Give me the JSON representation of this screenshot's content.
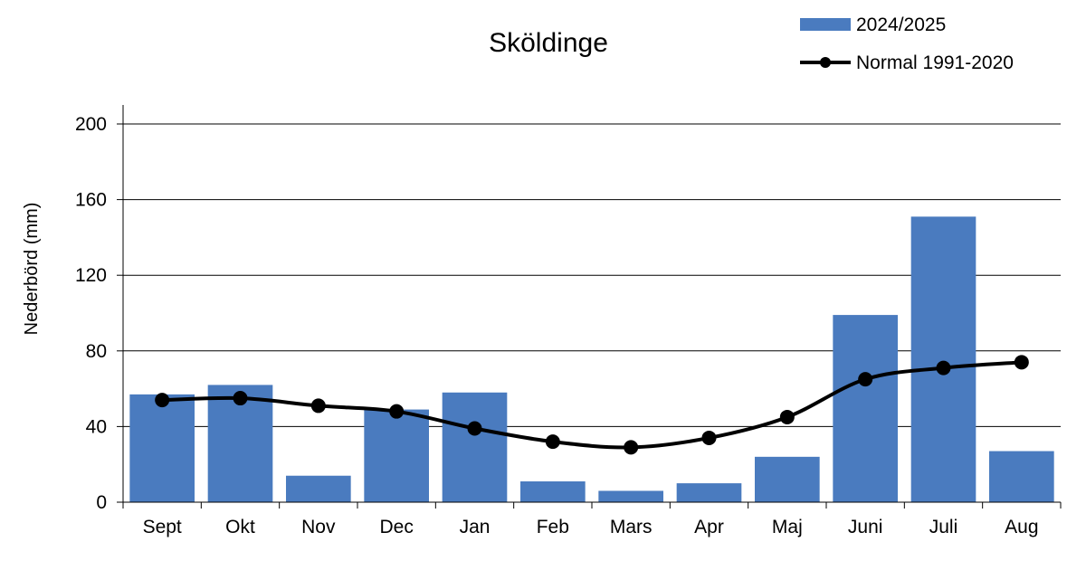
{
  "chart_data": {
    "type": "bar",
    "title": "Sköldinge",
    "xlabel": "",
    "ylabel": "Nederbörd (mm)",
    "ylim": [
      0,
      200
    ],
    "yticks": [
      0,
      40,
      80,
      120,
      160,
      200
    ],
    "grid": true,
    "legend_position": "top-right",
    "categories": [
      "Sept",
      "Okt",
      "Nov",
      "Dec",
      "Jan",
      "Feb",
      "Mars",
      "Apr",
      "Maj",
      "Juni",
      "Juli",
      "Aug"
    ],
    "series": [
      {
        "name": "2024/2025",
        "kind": "bar",
        "color": "#4a7bbf",
        "values": [
          57,
          62,
          14,
          49,
          58,
          11,
          6,
          10,
          24,
          99,
          151,
          27
        ]
      },
      {
        "name": "Normal 1991-2020",
        "kind": "line",
        "color": "#000000",
        "values": [
          54,
          55,
          51,
          48,
          39,
          32,
          29,
          34,
          45,
          65,
          71,
          74
        ]
      }
    ]
  }
}
